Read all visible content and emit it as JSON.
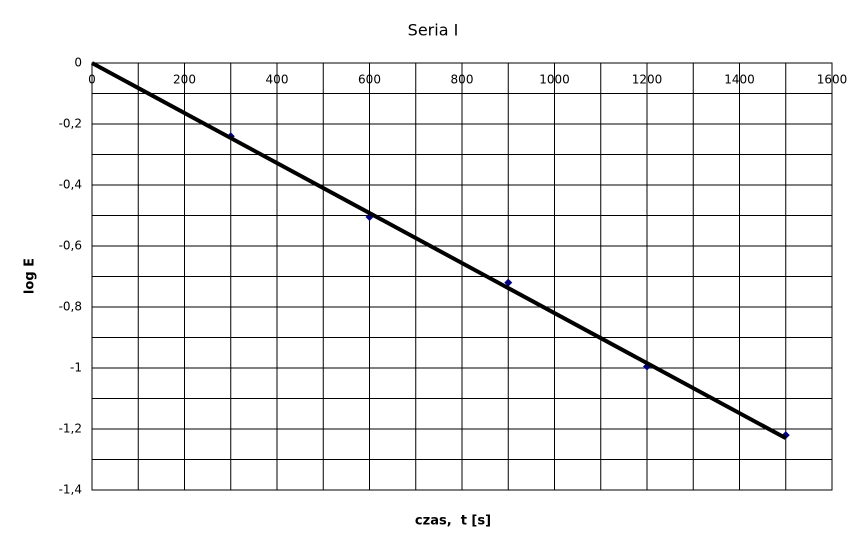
{
  "chart_data": {
    "type": "scatter",
    "title": "Seria I",
    "x_label": "czas,  t [s]",
    "y_label": "log E",
    "series": [
      {
        "type": "scatter",
        "color": "#000080",
        "x": [
          300,
          600,
          900,
          1200,
          1500
        ],
        "values": [
          -0.24,
          -0.505,
          -0.72,
          -0.995,
          -1.22
        ]
      },
      {
        "type": "line",
        "color": "#000000",
        "x": [
          0,
          1500
        ],
        "values": [
          0,
          -1.23
        ]
      }
    ],
    "xlim": [
      0,
      1600
    ],
    "xticks": [
      0,
      200,
      400,
      600,
      800,
      1000,
      1200,
      1400,
      1600
    ],
    "ylim": [
      -1.4,
      0
    ],
    "yticks": [
      0,
      {
        "value": -0.2,
        "label": "-0,2"
      },
      {
        "value": -0.4,
        "label": "-0,4"
      },
      {
        "value": -0.6,
        "label": "-0,6"
      },
      {
        "value": -0.8,
        "label": "-0,8"
      },
      -1,
      {
        "value": -1.2,
        "label": "-1,2"
      },
      {
        "value": -1.4,
        "label": "-1,4"
      }
    ],
    "grid": true
  }
}
